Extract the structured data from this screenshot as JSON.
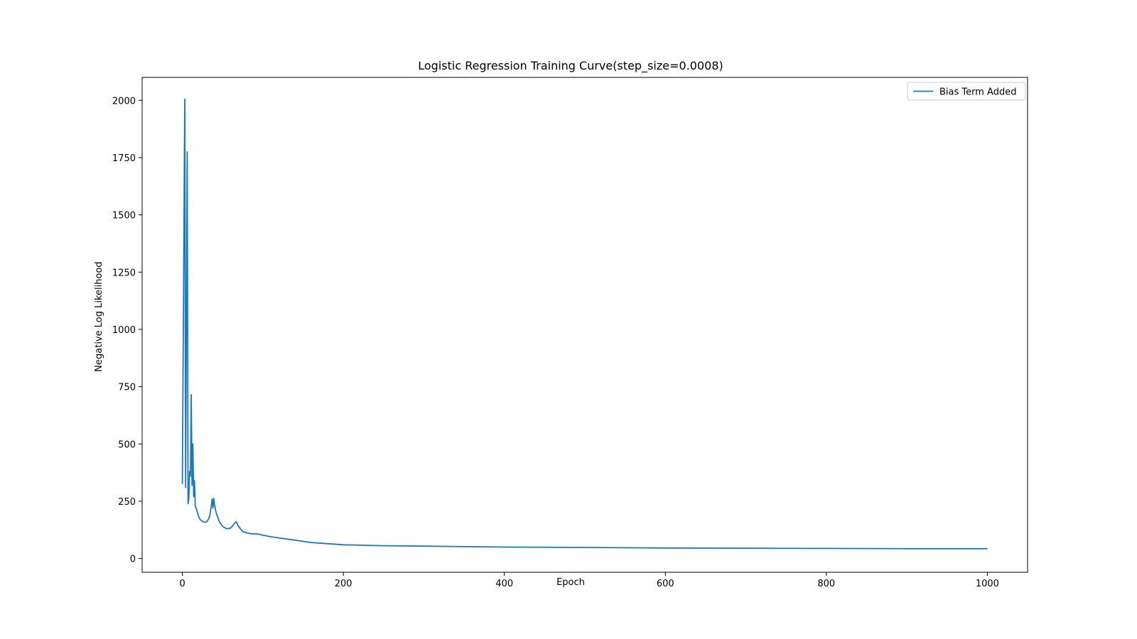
{
  "chart_data": {
    "type": "line",
    "title": "Logistic Regression Training Curve(step_size=0.0008)",
    "xlabel": "Epoch",
    "ylabel": "Negative Log Likelihood",
    "xlim": [
      -50,
      1050
    ],
    "ylim": [
      -60,
      2100
    ],
    "x_ticks": [
      0,
      200,
      400,
      600,
      800,
      1000
    ],
    "y_ticks": [
      0,
      250,
      500,
      750,
      1000,
      1250,
      1500,
      1750,
      2000
    ],
    "grid": false,
    "legend_position": "top-right",
    "series": [
      {
        "name": "Bias Term Added",
        "color": "#1f77b4",
        "points": [
          [
            0,
            325
          ],
          [
            3,
            2005
          ],
          [
            4,
            310
          ],
          [
            6,
            1775
          ],
          [
            7,
            240
          ],
          [
            8,
            260
          ],
          [
            9,
            380
          ],
          [
            10,
            360
          ],
          [
            11,
            715
          ],
          [
            12,
            320
          ],
          [
            13,
            500
          ],
          [
            14,
            270
          ],
          [
            15,
            340
          ],
          [
            16,
            230
          ],
          [
            18,
            210
          ],
          [
            20,
            185
          ],
          [
            22,
            170
          ],
          [
            25,
            162
          ],
          [
            28,
            158
          ],
          [
            30,
            160
          ],
          [
            32,
            170
          ],
          [
            34,
            185
          ],
          [
            35,
            210
          ],
          [
            36,
            230
          ],
          [
            37,
            260
          ],
          [
            38,
            220
          ],
          [
            39,
            262
          ],
          [
            40,
            235
          ],
          [
            41,
            215
          ],
          [
            42,
            200
          ],
          [
            44,
            180
          ],
          [
            46,
            160
          ],
          [
            50,
            140
          ],
          [
            55,
            130
          ],
          [
            60,
            133
          ],
          [
            63,
            145
          ],
          [
            65,
            155
          ],
          [
            67,
            160
          ],
          [
            69,
            145
          ],
          [
            72,
            130
          ],
          [
            75,
            118
          ],
          [
            80,
            112
          ],
          [
            85,
            108
          ],
          [
            90,
            108
          ],
          [
            95,
            106
          ],
          [
            100,
            102
          ],
          [
            110,
            95
          ],
          [
            120,
            90
          ],
          [
            140,
            80
          ],
          [
            160,
            70
          ],
          [
            180,
            65
          ],
          [
            200,
            60
          ],
          [
            250,
            56
          ],
          [
            300,
            54
          ],
          [
            400,
            50
          ],
          [
            500,
            48
          ],
          [
            600,
            46
          ],
          [
            700,
            45
          ],
          [
            800,
            44
          ],
          [
            900,
            43
          ],
          [
            1000,
            43
          ]
        ]
      }
    ]
  }
}
